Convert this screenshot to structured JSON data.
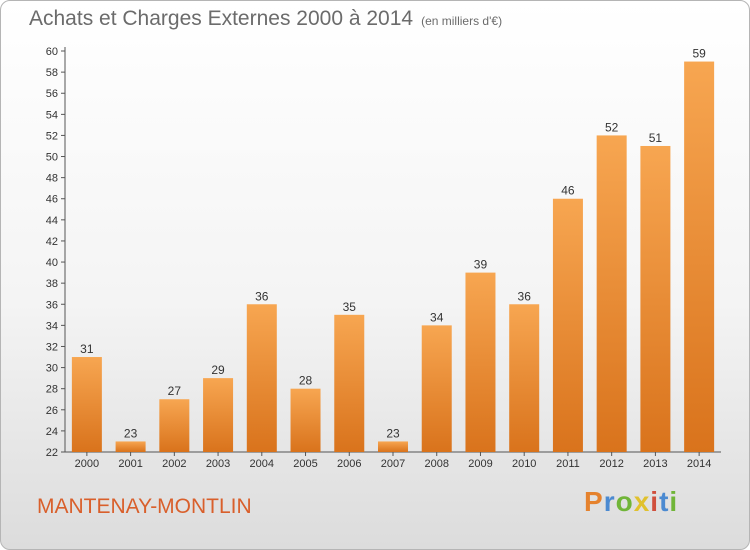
{
  "header": {
    "title": "Achats et Charges Externes 2000 à 2014",
    "unit": "(en milliers d'€)"
  },
  "commune": "MANTENAY-MONTLIN",
  "logo": {
    "letters": [
      "P",
      "r",
      "o",
      "x",
      "i",
      "t",
      "i"
    ]
  },
  "colors": {
    "bar_top": "#f7a651",
    "bar_bottom": "#d9731c",
    "commune": "#d95f2b",
    "title": "#6b6b6b"
  },
  "chart_data": {
    "type": "bar",
    "title": "Achats et Charges Externes 2000 à 2014",
    "subtitle": "(en milliers d'€)",
    "xlabel": "",
    "ylabel": "",
    "categories": [
      "2000",
      "2001",
      "2002",
      "2003",
      "2004",
      "2005",
      "2006",
      "2007",
      "2008",
      "2009",
      "2010",
      "2011",
      "2012",
      "2013",
      "2014"
    ],
    "values": [
      31,
      23,
      27,
      29,
      36,
      28,
      35,
      23,
      34,
      39,
      36,
      46,
      52,
      51,
      59
    ],
    "ylim": [
      22,
      60
    ],
    "ytick_step": 2,
    "grid": false,
    "data_labels": true
  }
}
